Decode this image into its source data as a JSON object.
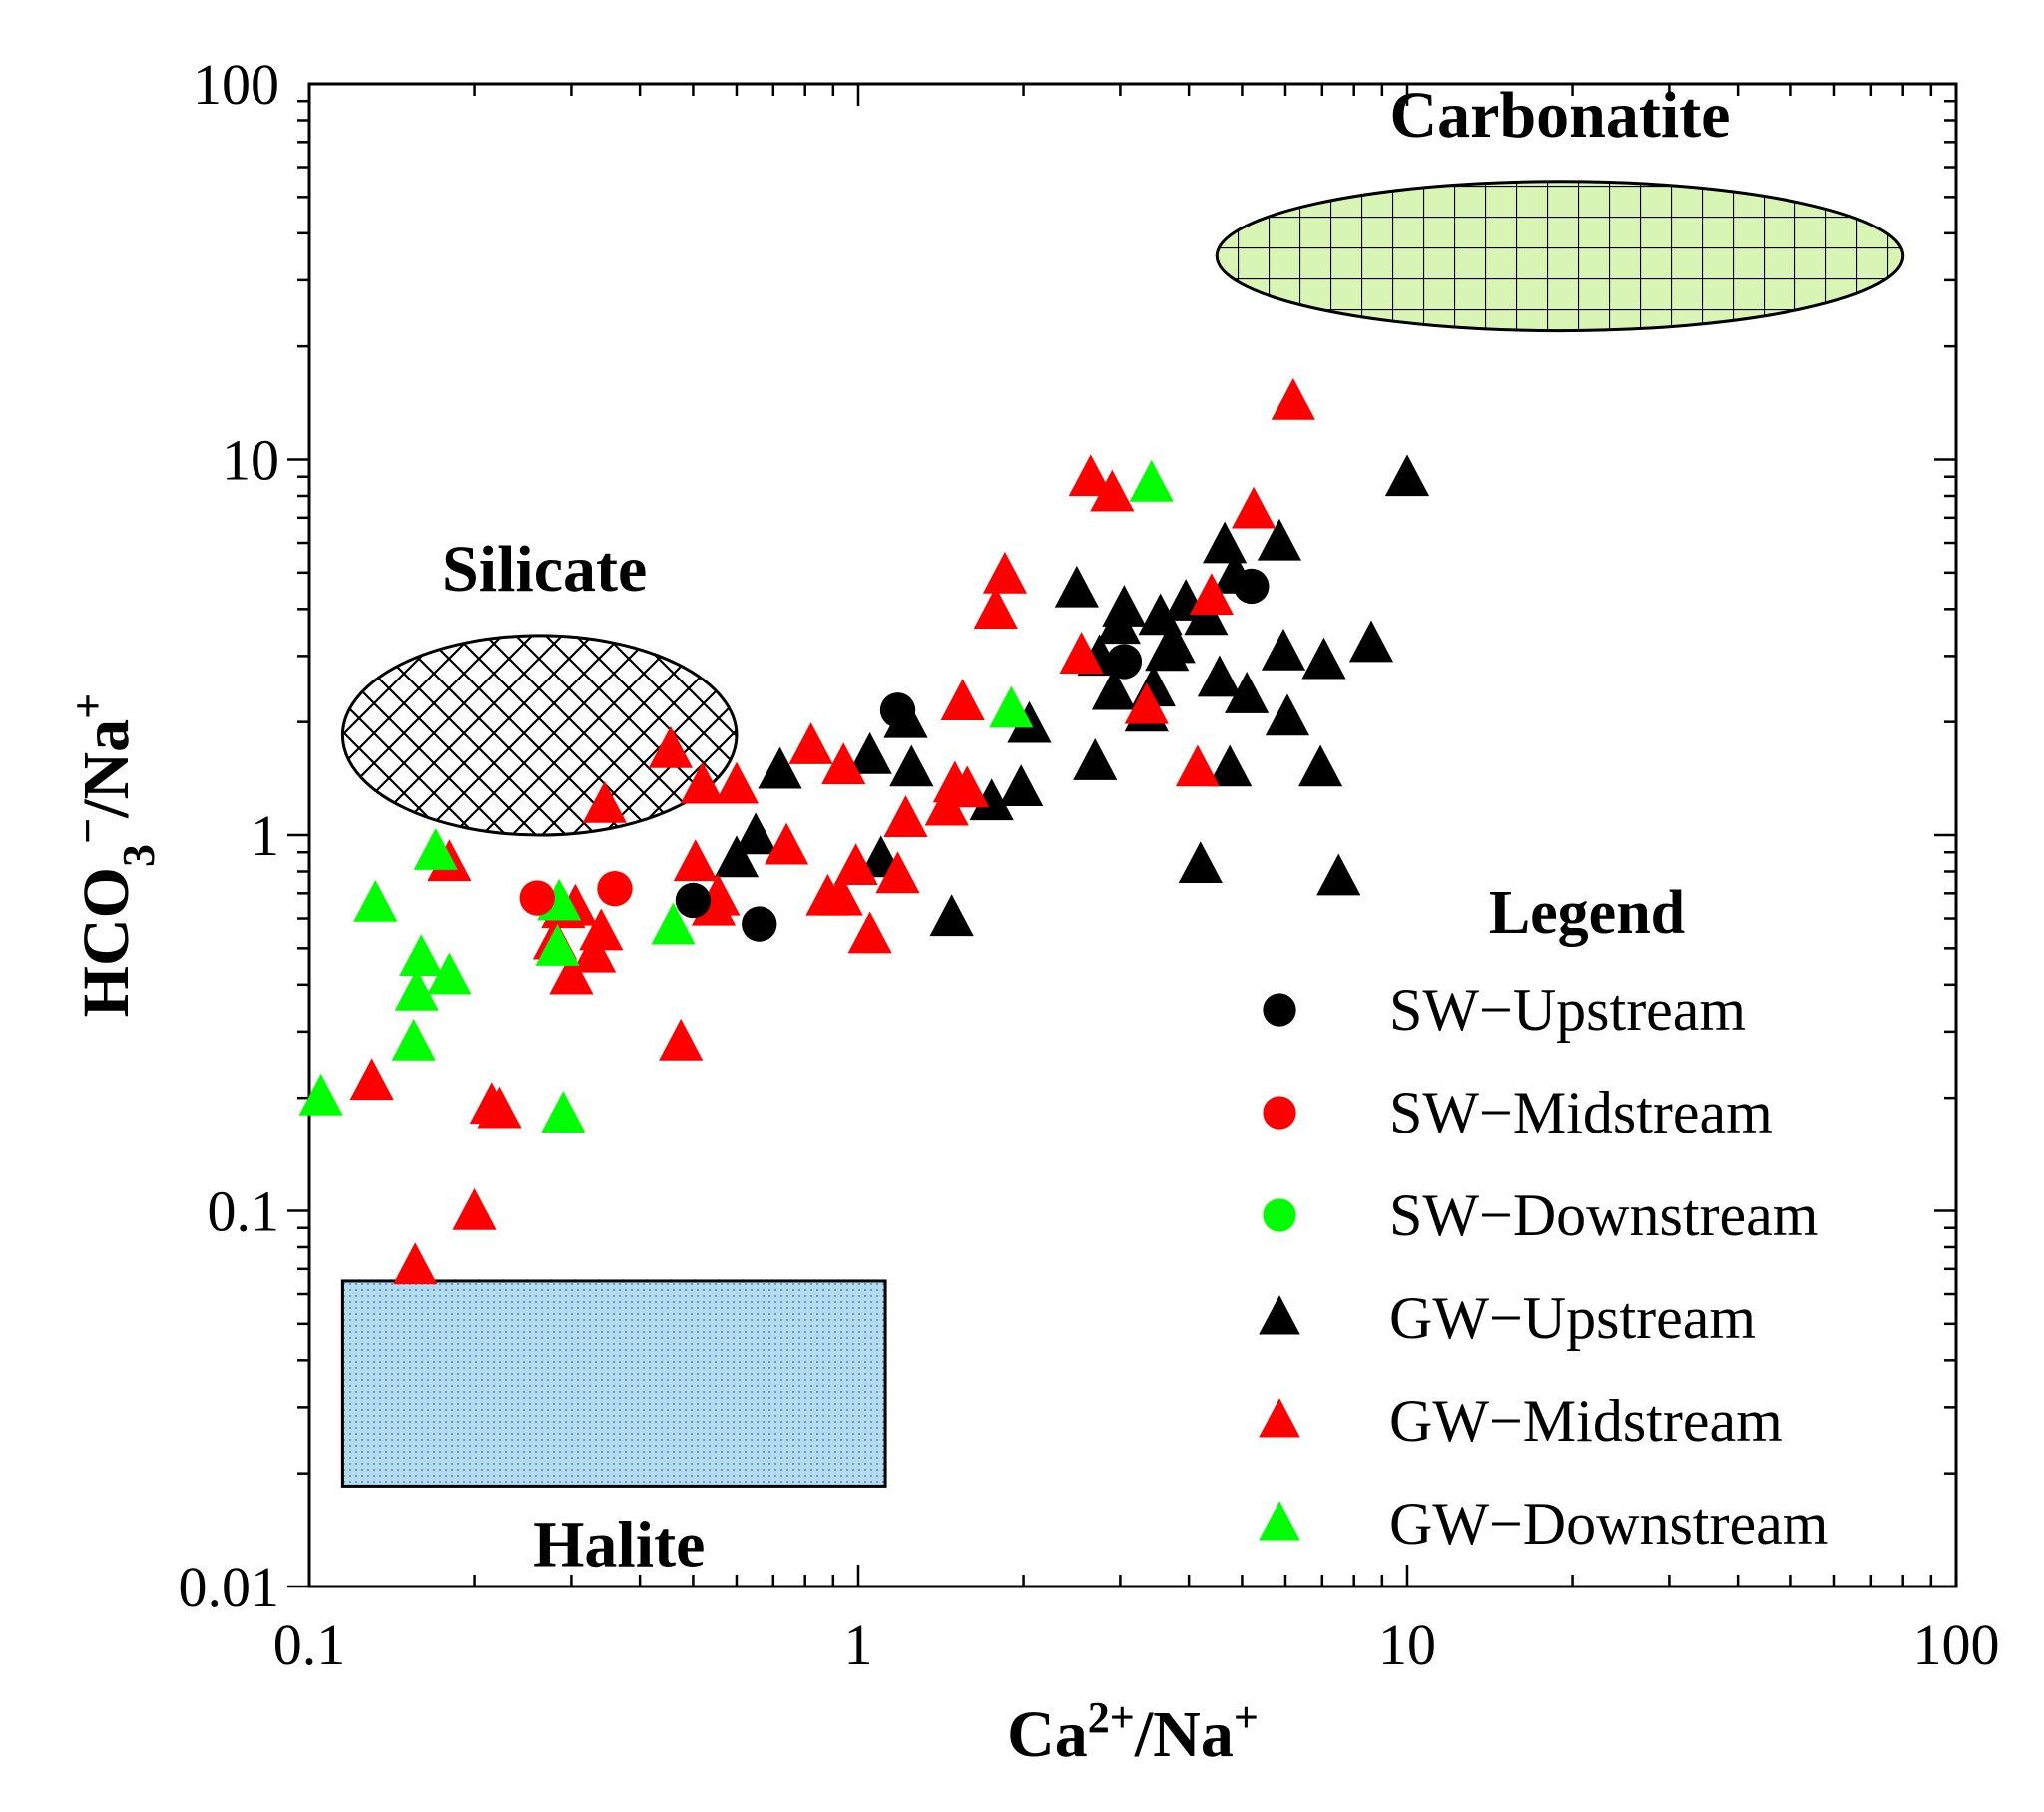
{
  "chart_data": {
    "type": "scatter",
    "xscale": "log",
    "yscale": "log",
    "xlim": [
      0.1,
      100
    ],
    "ylim": [
      0.01,
      100
    ],
    "x_ticks": [
      "0.1",
      "1",
      "10",
      "100"
    ],
    "y_ticks": [
      "0.01",
      "0.1",
      "1",
      "10",
      "100"
    ],
    "xlabel": {
      "base": "Ca",
      "sup1": "2+",
      "mid": "/Na",
      "sup2": "+"
    },
    "ylabel": {
      "base": "HCO",
      "sub": "3",
      "sup1": "−",
      "mid": "/Na",
      "sup2": "+"
    },
    "regions": [
      {
        "name": "Silicate",
        "shape": "ellipse",
        "fill": "#ffffff",
        "pattern": "crosshatch",
        "cx": 0.26,
        "cy": 1.85,
        "x_min": 0.115,
        "x_max": 0.6,
        "y_min": 1.0,
        "y_max": 3.4
      },
      {
        "name": "Carbonatite",
        "shape": "ellipse",
        "fill": "#d9f5b5",
        "pattern": "grid",
        "cx": 18,
        "cy": 35,
        "x_min": 4.5,
        "x_max": 80,
        "y_min": 22,
        "y_max": 55
      },
      {
        "name": "Halite",
        "shape": "rect",
        "fill": "#b3dcf2",
        "pattern": "dots",
        "x_min": 0.115,
        "x_max": 1.12,
        "y_min": 0.0185,
        "y_max": 0.065
      }
    ],
    "legend_title": "Legend",
    "series": [
      {
        "name": "SW−Upstream",
        "marker": "circle",
        "color": "#000000",
        "points": [
          [
            0.5,
            0.67
          ],
          [
            0.66,
            0.58
          ],
          [
            1.18,
            2.15
          ],
          [
            3.05,
            2.9
          ],
          [
            5.2,
            4.6
          ]
        ]
      },
      {
        "name": "SW−Midstream",
        "marker": "circle",
        "color": "#ff0000",
        "points": [
          [
            0.26,
            0.68
          ],
          [
            0.36,
            0.72
          ]
        ]
      },
      {
        "name": "SW−Downstream",
        "marker": "circle",
        "color": "#00ff00",
        "points": []
      },
      {
        "name": "GW−Upstream",
        "marker": "triangle",
        "color": "#000000",
        "points": [
          [
            0.65,
            0.99
          ],
          [
            0.6,
            0.86
          ],
          [
            0.72,
            1.48
          ],
          [
            1.05,
            1.62
          ],
          [
            1.1,
            0.86
          ],
          [
            1.22,
            2.02
          ],
          [
            1.25,
            1.5
          ],
          [
            1.48,
            0.6
          ],
          [
            1.75,
            1.22
          ],
          [
            1.98,
            1.33
          ],
          [
            2.05,
            1.96
          ],
          [
            2.5,
            4.5
          ],
          [
            2.7,
            1.56
          ],
          [
            2.75,
            2.96
          ],
          [
            2.92,
            2.4
          ],
          [
            2.98,
            3.6
          ],
          [
            3.05,
            4.0
          ],
          [
            3.35,
            2.1
          ],
          [
            3.45,
            2.45
          ],
          [
            3.55,
            3.8
          ],
          [
            3.65,
            3.05
          ],
          [
            3.75,
            3.2
          ],
          [
            3.95,
            4.15
          ],
          [
            4.2,
            0.83
          ],
          [
            4.3,
            3.8
          ],
          [
            4.55,
            2.6
          ],
          [
            4.65,
            5.9
          ],
          [
            4.75,
            1.5
          ],
          [
            4.85,
            4.9
          ],
          [
            5.1,
            2.35
          ],
          [
            5.85,
            6.0
          ],
          [
            5.95,
            3.06
          ],
          [
            6.05,
            2.05
          ],
          [
            6.95,
            1.5
          ],
          [
            7.05,
            2.9
          ],
          [
            7.5,
            0.77
          ],
          [
            8.6,
            3.22
          ],
          [
            10.0,
            8.9
          ]
        ]
      },
      {
        "name": "GW−Midstream",
        "marker": "triangle",
        "color": "#ff0000",
        "points": [
          [
            0.13,
            0.22
          ],
          [
            0.156,
            0.071
          ],
          [
            0.18,
            0.84
          ],
          [
            0.2,
            0.099
          ],
          [
            0.215,
            0.19
          ],
          [
            0.222,
            0.185
          ],
          [
            0.28,
            0.52
          ],
          [
            0.29,
            0.63
          ],
          [
            0.3,
            0.42
          ],
          [
            0.305,
            0.64
          ],
          [
            0.33,
            0.48
          ],
          [
            0.34,
            0.55
          ],
          [
            0.345,
            1.2
          ],
          [
            0.455,
            1.68
          ],
          [
            0.475,
            0.28
          ],
          [
            0.505,
            0.84
          ],
          [
            0.52,
            1.35
          ],
          [
            0.545,
            0.64
          ],
          [
            0.555,
            0.68
          ],
          [
            0.6,
            1.35
          ],
          [
            0.74,
            0.93
          ],
          [
            0.82,
            1.72
          ],
          [
            0.88,
            0.68
          ],
          [
            0.94,
            1.52
          ],
          [
            0.93,
            0.68
          ],
          [
            0.99,
            0.82
          ],
          [
            1.05,
            0.54
          ],
          [
            1.18,
            0.78
          ],
          [
            1.22,
            1.1
          ],
          [
            1.45,
            1.18
          ],
          [
            1.5,
            1.36
          ],
          [
            1.55,
            2.25
          ],
          [
            1.58,
            1.32
          ],
          [
            1.78,
            3.95
          ],
          [
            1.85,
            4.9
          ],
          [
            2.55,
            3.0
          ],
          [
            2.65,
            8.9
          ],
          [
            2.9,
            8.1
          ],
          [
            3.35,
            2.2
          ],
          [
            4.15,
            1.5
          ],
          [
            4.4,
            4.3
          ],
          [
            5.25,
            7.3
          ],
          [
            6.2,
            14.2
          ]
        ]
      },
      {
        "name": "GW−Downstream",
        "marker": "triangle",
        "color": "#00ff00",
        "points": [
          [
            0.105,
            0.2
          ],
          [
            0.132,
            0.655
          ],
          [
            0.155,
            0.28
          ],
          [
            0.157,
            0.38
          ],
          [
            0.16,
            0.47
          ],
          [
            0.17,
            0.9
          ],
          [
            0.18,
            0.42
          ],
          [
            0.283,
            0.5
          ],
          [
            0.285,
            0.66
          ],
          [
            0.29,
            0.18
          ],
          [
            0.46,
            0.57
          ],
          [
            1.9,
            2.15
          ],
          [
            3.42,
            8.6
          ]
        ]
      }
    ]
  }
}
